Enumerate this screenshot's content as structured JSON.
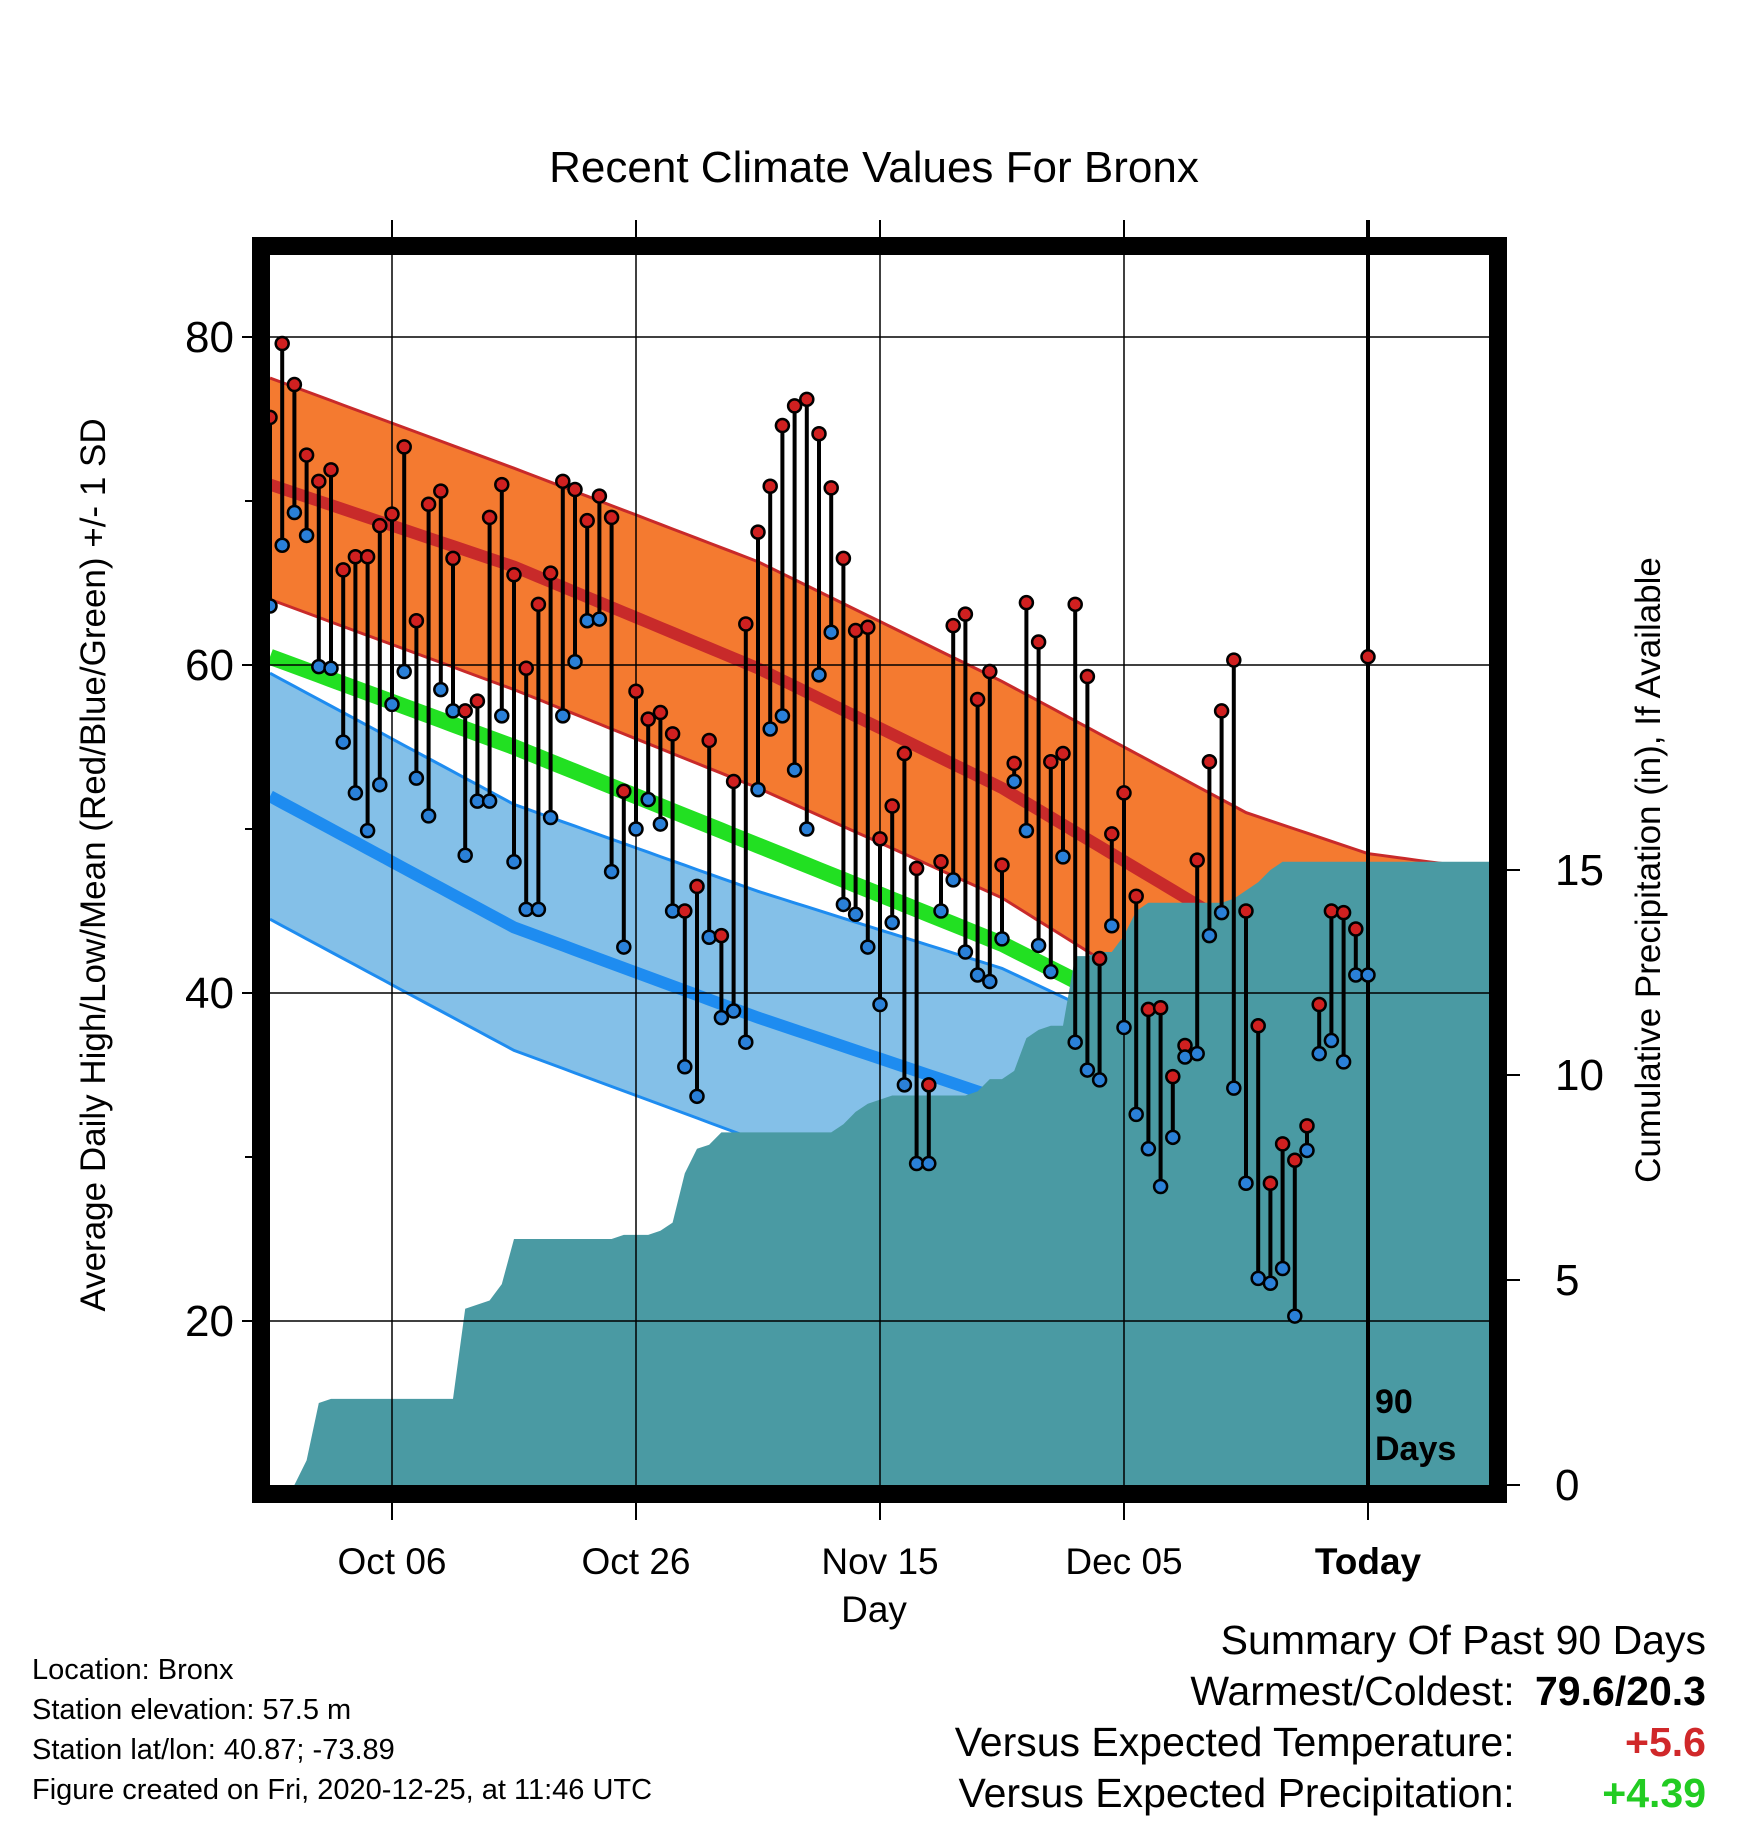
{
  "chart_data": {
    "type": "line",
    "title": "Recent Climate Values For Bronx",
    "xlabel": "Day",
    "ylabel": "Average Daily High/Low/Mean (Red/Blue/Green) +/- 1 SD",
    "y2label": "Cumulative Precipitation (in), If Available",
    "ylim": [
      10,
      85
    ],
    "y2lim": [
      0,
      30
    ],
    "xlim": [
      0,
      100
    ],
    "yticks": [
      "20",
      "40",
      "60",
      "80"
    ],
    "y2ticks": [
      "0",
      "5",
      "10",
      "15"
    ],
    "xticks": [
      {
        "day": 10,
        "label": "Oct 06"
      },
      {
        "day": 30,
        "label": "Oct 26"
      },
      {
        "day": 50,
        "label": "Nov 15"
      },
      {
        "day": 70,
        "label": "Dec 05"
      },
      {
        "day": 90,
        "label": "Today"
      }
    ],
    "today_marker": {
      "day": 90,
      "label_line1": "90",
      "label_line2": "Days"
    },
    "colors": {
      "high_band": "#f47a30",
      "high_mean": "#c82a2a",
      "low_band": "#84c0e8",
      "low_mean": "#1e8cf0",
      "avg_mean": "#22e022",
      "precip": "#4a9aa3",
      "high_dot": "#d02020",
      "low_dot": "#2a80d8"
    },
    "normal_high": {
      "days": [
        0,
        20,
        40,
        60,
        80,
        90,
        100
      ],
      "mean": [
        71,
        66,
        59.8,
        52.5,
        43.6,
        40.0,
        38.0
      ],
      "upper": [
        77.5,
        72,
        66.3,
        59,
        51,
        48.5,
        47.5
      ],
      "lower": [
        64,
        58.5,
        52.5,
        45.8,
        36.5,
        33.5,
        33.0
      ]
    },
    "normal_low": {
      "days": [
        0,
        20,
        40,
        60,
        80,
        90,
        100
      ],
      "mean": [
        52,
        44,
        38.5,
        33.5,
        27.5,
        24.5,
        22.5
      ],
      "upper": [
        59.5,
        51.5,
        46.2,
        41.5,
        34.5,
        31.5,
        30.0
      ],
      "lower": [
        44.5,
        36.5,
        31,
        25.5,
        20.0,
        17.5,
        15.5
      ]
    },
    "normal_avg": {
      "days": [
        0,
        20,
        40,
        60,
        80,
        90,
        100
      ],
      "mean": [
        60.5,
        55,
        49,
        43,
        35.5,
        32.0,
        30.0
      ]
    },
    "daily": {
      "days": [
        0,
        1,
        2,
        3,
        4,
        5,
        6,
        7,
        8,
        9,
        10,
        11,
        12,
        13,
        14,
        15,
        16,
        17,
        18,
        19,
        20,
        21,
        22,
        23,
        24,
        25,
        26,
        27,
        28,
        29,
        30,
        31,
        32,
        33,
        34,
        35,
        36,
        37,
        38,
        39,
        40,
        41,
        42,
        43,
        44,
        45,
        46,
        47,
        48,
        49,
        50,
        51,
        52,
        53,
        54,
        55,
        56,
        57,
        58,
        59,
        60,
        61,
        62,
        63,
        64,
        65,
        66,
        67,
        68,
        69,
        70,
        71,
        72,
        73,
        74,
        75,
        76,
        77,
        78,
        79,
        80,
        81,
        82,
        83,
        84,
        85,
        86,
        87,
        88,
        89,
        90
      ],
      "high": [
        75.1,
        79.6,
        77.1,
        72.8,
        71.2,
        71.9,
        65.8,
        66.6,
        66.6,
        68.5,
        69.2,
        73.3,
        62.7,
        69.8,
        70.6,
        66.5,
        57.2,
        57.8,
        69.0,
        71.0,
        65.5,
        59.8,
        63.7,
        65.6,
        71.2,
        70.7,
        68.8,
        70.3,
        69.0,
        52.3,
        58.4,
        56.7,
        57.1,
        55.8,
        45.0,
        46.5,
        55.4,
        43.5,
        52.9,
        62.5,
        68.1,
        70.9,
        74.6,
        75.8,
        76.2,
        74.1,
        70.8,
        66.5,
        62.1,
        62.3,
        49.4,
        51.4,
        54.6,
        47.6,
        34.4,
        48.0,
        62.4,
        63.1,
        57.9,
        59.6,
        47.8,
        54.0,
        63.8,
        61.4,
        54.1,
        54.6,
        63.7,
        59.3,
        42.1,
        49.7,
        52.2,
        45.9,
        39.0,
        39.1,
        34.9,
        36.8,
        48.1,
        54.1,
        57.2,
        60.3,
        45.0,
        38.0,
        28.4,
        30.8,
        29.8,
        31.9,
        39.3,
        45.0,
        44.9,
        43.9,
        60.5
      ],
      "low": [
        63.6,
        67.3,
        69.3,
        67.9,
        59.9,
        59.8,
        55.3,
        52.2,
        49.9,
        52.7,
        57.6,
        59.6,
        53.1,
        50.8,
        58.5,
        57.2,
        48.4,
        51.7,
        51.7,
        56.9,
        48.0,
        45.1,
        45.1,
        50.7,
        56.9,
        60.2,
        62.7,
        62.8,
        47.4,
        42.8,
        50.0,
        51.8,
        50.3,
        45.0,
        35.5,
        33.7,
        43.4,
        38.5,
        38.9,
        37.0,
        52.4,
        56.1,
        56.9,
        53.6,
        50.0,
        59.4,
        62.0,
        45.4,
        44.8,
        42.8,
        39.3,
        44.3,
        34.4,
        29.6,
        29.6,
        45.0,
        46.9,
        42.5,
        41.1,
        40.7,
        43.3,
        52.9,
        49.9,
        42.9,
        41.3,
        48.3,
        37.0,
        35.3,
        34.7,
        44.1,
        37.9,
        32.6,
        30.5,
        28.2,
        31.2,
        36.1,
        36.3,
        43.5,
        44.9,
        34.2,
        28.4,
        22.6,
        22.3,
        23.2,
        20.3,
        30.4,
        36.3,
        37.1,
        35.8,
        41.1,
        41.1
      ]
    },
    "precip_cumulative": {
      "days": [
        0,
        2,
        3,
        4,
        5,
        6,
        7,
        8,
        9,
        10,
        11,
        12,
        13,
        14,
        15,
        16,
        17,
        18,
        19,
        20,
        21,
        22,
        23,
        24,
        25,
        26,
        27,
        28,
        29,
        30,
        31,
        32,
        33,
        34,
        35,
        36,
        37,
        38,
        39,
        40,
        41,
        42,
        43,
        44,
        45,
        46,
        47,
        48,
        49,
        50,
        51,
        52,
        53,
        54,
        55,
        56,
        57,
        58,
        59,
        60,
        61,
        62,
        63,
        64,
        65,
        66,
        67,
        68,
        69,
        70,
        71,
        72,
        73,
        74,
        75,
        76,
        77,
        78,
        79,
        80,
        81,
        82,
        83,
        84,
        85,
        86,
        87,
        88,
        89,
        90,
        91,
        100
      ],
      "total": [
        0,
        0,
        0.6,
        2.0,
        2.1,
        2.1,
        2.1,
        2.1,
        2.1,
        2.1,
        2.1,
        2.1,
        2.1,
        2.1,
        2.1,
        4.3,
        4.4,
        4.5,
        4.9,
        6.0,
        6.0,
        6.0,
        6.0,
        6.0,
        6.0,
        6.0,
        6.0,
        6.0,
        6.1,
        6.1,
        6.1,
        6.2,
        6.4,
        7.6,
        8.2,
        8.3,
        8.6,
        8.6,
        8.6,
        8.6,
        8.6,
        8.6,
        8.6,
        8.6,
        8.6,
        8.6,
        8.8,
        9.1,
        9.3,
        9.4,
        9.5,
        9.5,
        9.5,
        9.5,
        9.5,
        9.5,
        9.5,
        9.6,
        9.9,
        9.9,
        10.1,
        10.9,
        11.1,
        11.2,
        11.2,
        12.9,
        12.9,
        13.0,
        13.0,
        13.4,
        14.0,
        14.2,
        14.2,
        14.2,
        14.2,
        14.2,
        14.2,
        14.2,
        14.3,
        14.5,
        14.7,
        15.0,
        15.2,
        15.2,
        15.2,
        15.2,
        15.2,
        15.2,
        15.2,
        15.2,
        15.2,
        15.2
      ]
    }
  },
  "footer": {
    "location": "Location: Bronx",
    "elevation": "Station elevation: 57.5 m",
    "latlon": "Station lat/lon: 40.87; -73.89",
    "created": "Figure created on Fri, 2020-12-25, at 11:46 UTC"
  },
  "summary": {
    "heading": "Summary Of Past 90 Days",
    "warm_label": "Warmest/Coldest:",
    "warm_value": "79.6/20.3",
    "temp_label": "Versus Expected Temperature:",
    "temp_value": "+5.6",
    "prcp_label": "Versus Expected Precipitation:",
    "prcp_value": "+4.39"
  }
}
